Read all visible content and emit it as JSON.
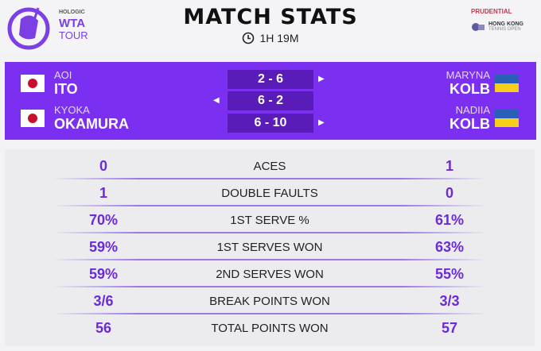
{
  "header": {
    "logo": {
      "line1": "HOLOGIC",
      "line2": "WTA",
      "line3": "TOUR"
    },
    "title": "MATCH STATS",
    "duration_icon": "clock-icon",
    "duration": "1H 19M",
    "sponsor": {
      "line1": "PRUDENTIAL",
      "line2": "HONG KONG",
      "line3": "TENNIS OPEN"
    }
  },
  "scoreboard": {
    "team_left": [
      {
        "first": "AOI",
        "last": "ITO",
        "flag": "japan"
      },
      {
        "first": "KYOKA",
        "last": "OKAMURA",
        "flag": "japan"
      }
    ],
    "team_right": [
      {
        "first": "MARYNA",
        "last": "KOLB",
        "flag": "ukraine"
      },
      {
        "first": "NADIIA",
        "last": "KOLB",
        "flag": "ukraine"
      }
    ],
    "sets": [
      {
        "score": "2 - 6",
        "winner": "right"
      },
      {
        "score": "6 - 2",
        "winner": "left"
      },
      {
        "score": "6 - 10",
        "winner": "right"
      }
    ]
  },
  "stats": [
    {
      "label": "ACES",
      "left": "0",
      "right": "1"
    },
    {
      "label": "DOUBLE FAULTS",
      "left": "1",
      "right": "0"
    },
    {
      "label": "1ST SERVE %",
      "left": "70%",
      "right": "61%"
    },
    {
      "label": "1ST SERVES WON",
      "left": "59%",
      "right": "63%"
    },
    {
      "label": "2ND SERVES WON",
      "left": "59%",
      "right": "55%"
    },
    {
      "label": "BREAK POINTS WON",
      "left": "3/6",
      "right": "3/3"
    },
    {
      "label": "TOTAL POINTS WON",
      "left": "56",
      "right": "57"
    }
  ],
  "colors": {
    "accent": "#7b2ff0",
    "score_box": "#5a1cb8",
    "stat_value": "#6b2bd6"
  }
}
